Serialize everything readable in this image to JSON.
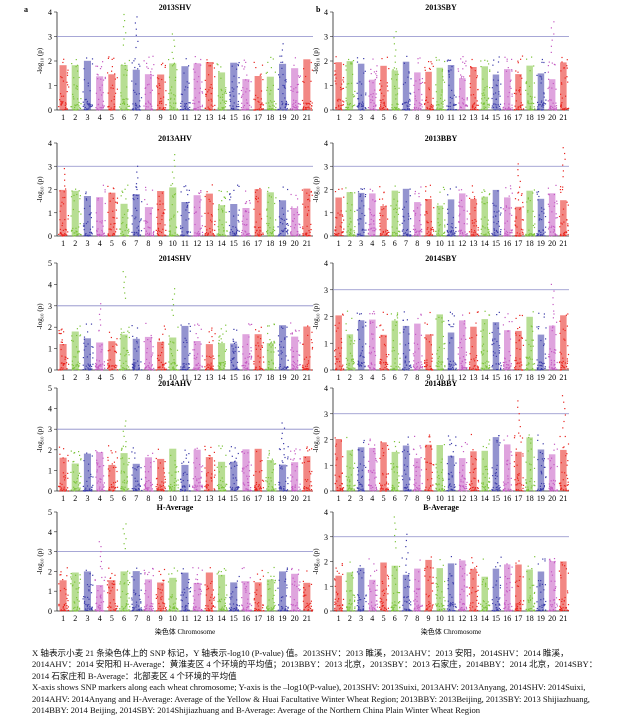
{
  "panel_letters": {
    "left": "a",
    "right": "b"
  },
  "xaxis_label": "染色体 Chromosome",
  "yaxis_label": "-log₁₀ (p)",
  "threshold": 3,
  "colors": [
    "#e8241e",
    "#7cc33a",
    "#3a3aa8",
    "#c45ac2"
  ],
  "chart_data": [
    {
      "type": "scatter",
      "subtype": "manhattan",
      "title": "2013SHV",
      "ylim": [
        0,
        4
      ],
      "yticks": [
        0,
        1,
        2,
        3,
        4
      ],
      "threshold": 3,
      "x_tick_labels": [
        "1",
        "2",
        "3",
        "4",
        "5",
        "6",
        "7",
        "8",
        "9",
        "10",
        "11",
        "12",
        "13",
        "14",
        "15",
        "16",
        "17",
        "18",
        "19",
        "20",
        "21"
      ],
      "peaks": [
        {
          "chromosome": "6",
          "max_y": 3.9
        },
        {
          "chromosome": "7",
          "max_y": 3.8
        },
        {
          "chromosome": "10",
          "max_y": 3.1
        },
        {
          "chromosome": "19",
          "max_y": 2.7
        }
      ]
    },
    {
      "type": "scatter",
      "subtype": "manhattan",
      "title": "2013SBY",
      "ylim": [
        0,
        4
      ],
      "yticks": [
        0,
        1,
        2,
        3,
        4
      ],
      "threshold": 3,
      "x_tick_labels": [
        "1",
        "2",
        "3",
        "4",
        "5",
        "6",
        "7",
        "8",
        "9",
        "10",
        "11",
        "12",
        "13",
        "14",
        "15",
        "16",
        "17",
        "18",
        "19",
        "20",
        "21"
      ],
      "peaks": [
        {
          "chromosome": "6",
          "max_y": 3.2
        },
        {
          "chromosome": "20",
          "max_y": 3.6
        }
      ]
    },
    {
      "type": "scatter",
      "subtype": "manhattan",
      "title": "2013AHV",
      "ylim": [
        0,
        4
      ],
      "yticks": [
        0,
        1,
        2,
        3,
        4
      ],
      "threshold": 3,
      "x_tick_labels": [
        "1",
        "2",
        "3",
        "4",
        "5",
        "6",
        "7",
        "8",
        "9",
        "10",
        "11",
        "12",
        "13",
        "14",
        "15",
        "16",
        "17",
        "18",
        "19",
        "20",
        "21"
      ],
      "peaks": [
        {
          "chromosome": "1",
          "max_y": 2.9
        },
        {
          "chromosome": "10",
          "max_y": 3.5
        },
        {
          "chromosome": "7",
          "max_y": 3.0
        }
      ]
    },
    {
      "type": "scatter",
      "subtype": "manhattan",
      "title": "2013BBY",
      "ylim": [
        0,
        4
      ],
      "yticks": [
        0,
        1,
        2,
        3,
        4
      ],
      "threshold": 3,
      "x_tick_labels": [
        "1",
        "2",
        "3",
        "4",
        "5",
        "6",
        "7",
        "8",
        "9",
        "10",
        "11",
        "12",
        "13",
        "14",
        "15",
        "16",
        "17",
        "18",
        "19",
        "20",
        "21"
      ],
      "peaks": [
        {
          "chromosome": "17",
          "max_y": 3.1
        },
        {
          "chromosome": "21",
          "max_y": 3.8
        }
      ]
    },
    {
      "type": "scatter",
      "subtype": "manhattan",
      "title": "2014SHV",
      "ylim": [
        0,
        5
      ],
      "yticks": [
        0,
        1,
        2,
        3,
        4,
        5
      ],
      "threshold": 3,
      "x_tick_labels": [
        "1",
        "2",
        "3",
        "4",
        "5",
        "6",
        "7",
        "8",
        "9",
        "10",
        "11",
        "12",
        "13",
        "14",
        "15",
        "16",
        "17",
        "18",
        "19",
        "20",
        "21"
      ],
      "peaks": [
        {
          "chromosome": "6",
          "max_y": 4.6
        },
        {
          "chromosome": "10",
          "max_y": 3.8
        },
        {
          "chromosome": "4",
          "max_y": 3.1
        }
      ]
    },
    {
      "type": "scatter",
      "subtype": "manhattan",
      "title": "2014SBY",
      "ylim": [
        0,
        4
      ],
      "yticks": [
        0,
        1,
        2,
        3,
        4
      ],
      "threshold": 3,
      "x_tick_labels": [
        "1",
        "2",
        "3",
        "4",
        "5",
        "6",
        "7",
        "8",
        "9",
        "10",
        "11",
        "12",
        "13",
        "14",
        "15",
        "16",
        "17",
        "18",
        "19",
        "20",
        "21"
      ],
      "peaks": [
        {
          "chromosome": "20",
          "max_y": 3.2
        }
      ]
    },
    {
      "type": "scatter",
      "subtype": "manhattan",
      "title": "2014AHV",
      "ylim": [
        0,
        5
      ],
      "yticks": [
        0,
        1,
        2,
        3,
        4,
        5
      ],
      "threshold": 3,
      "x_tick_labels": [
        "1",
        "2",
        "3",
        "4",
        "5",
        "6",
        "7",
        "8",
        "9",
        "10",
        "11",
        "12",
        "13",
        "14",
        "15",
        "16",
        "17",
        "18",
        "19",
        "20",
        "21"
      ],
      "peaks": [
        {
          "chromosome": "6",
          "max_y": 3.4
        },
        {
          "chromosome": "19",
          "max_y": 3.3
        }
      ]
    },
    {
      "type": "scatter",
      "subtype": "manhattan",
      "title": "2014BBY",
      "ylim": [
        0,
        4
      ],
      "yticks": [
        0,
        1,
        2,
        3,
        4
      ],
      "threshold": 3,
      "x_tick_labels": [
        "1",
        "2",
        "3",
        "4",
        "5",
        "6",
        "7",
        "8",
        "9",
        "10",
        "11",
        "12",
        "13",
        "14",
        "15",
        "16",
        "17",
        "18",
        "19",
        "20",
        "21"
      ],
      "peaks": [
        {
          "chromosome": "17",
          "max_y": 3.5
        },
        {
          "chromosome": "21",
          "max_y": 3.7
        }
      ]
    },
    {
      "type": "scatter",
      "subtype": "manhattan",
      "title": "H-Average",
      "ylim": [
        0,
        5
      ],
      "yticks": [
        0,
        1,
        2,
        3,
        4,
        5
      ],
      "threshold": 3,
      "x_tick_labels": [
        "1",
        "2",
        "3",
        "4",
        "5",
        "6",
        "7",
        "8",
        "9",
        "10",
        "11",
        "12",
        "13",
        "14",
        "15",
        "16",
        "17",
        "18",
        "19",
        "20",
        "21"
      ],
      "peaks": [
        {
          "chromosome": "6",
          "max_y": 4.4
        },
        {
          "chromosome": "4",
          "max_y": 3.5
        }
      ]
    },
    {
      "type": "scatter",
      "subtype": "manhattan",
      "title": "B-Average",
      "ylim": [
        0,
        4
      ],
      "yticks": [
        0,
        1,
        2,
        3,
        4
      ],
      "threshold": 3,
      "x_tick_labels": [
        "1",
        "2",
        "3",
        "4",
        "5",
        "6",
        "7",
        "8",
        "9",
        "10",
        "11",
        "12",
        "13",
        "14",
        "15",
        "16",
        "17",
        "18",
        "19",
        "20",
        "21"
      ],
      "peaks": [
        {
          "chromosome": "6",
          "max_y": 3.8
        },
        {
          "chromosome": "7",
          "max_y": 3.1
        }
      ]
    }
  ],
  "caption": {
    "cn": "X 轴表示小麦 21 条染色体上的 SNP 标记，Y 轴表示-log10 (P-value) 值。2013SHV：2013 睢溪，2013AHV：2013 安阳，2014SHV：2014 睢溪，2014AHV：2014 安阳和 H-Average：黄淮麦区 4 个环境的平均值；2013BBY：2013 北京，2013SBY：2013 石家庄，2014BBY：2014 北京，2014SBY：2014 石家庄和 B-Average：北部麦区 4 个环境的平均值",
    "en": "X-axis shows SNP markers along each wheat chromosome; Y-axis is the –log10(P-value), 2013SHV: 2013Suixi, 2013AHV: 2013Anyang, 2014SHV: 2014Suixi, 2014AHV: 2014Anyang and H-Average: Average of the Yellow & Huai Facultative Winter Wheat Region; 2013BBY: 2013Beijing, 2013SBY: 2013 Shijiazhuang, 2014BBY: 2014 Beijing, 2014SBY: 2014Shijiazhuang and B-Average: Average of the Northern China Plain Winter Wheat Region"
  }
}
